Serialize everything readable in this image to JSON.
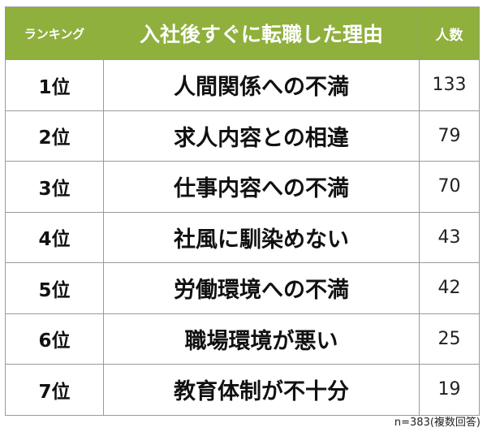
{
  "header": {
    "rank_label": "ランキング",
    "reason_label": "入社後すぐに転職した理由",
    "count_label": "人数"
  },
  "colors": {
    "header_bg": "#8fb03c",
    "header_text": "#ffffff",
    "border": "#9a9a9a"
  },
  "chart_data": {
    "type": "table",
    "columns": [
      "ランキング",
      "入社後すぐに転職した理由",
      "人数"
    ],
    "rows": [
      {
        "rank": "1位",
        "reason": "人間関係への不満",
        "count": 133
      },
      {
        "rank": "2位",
        "reason": "求人内容との相違",
        "count": 79
      },
      {
        "rank": "3位",
        "reason": "仕事内容への不満",
        "count": 70
      },
      {
        "rank": "4位",
        "reason": "社風に馴染めない",
        "count": 43
      },
      {
        "rank": "5位",
        "reason": "労働環境への不満",
        "count": 42
      },
      {
        "rank": "6位",
        "reason": "職場環境が悪い",
        "count": 25
      },
      {
        "rank": "7位",
        "reason": "教育体制が不十分",
        "count": 19
      }
    ]
  },
  "footnote": "n=383(複数回答)"
}
